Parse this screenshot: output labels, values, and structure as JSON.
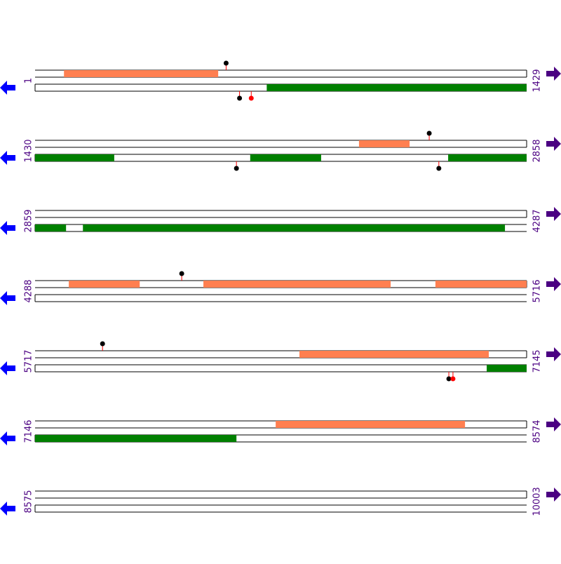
{
  "rows": [
    {
      "start": "1",
      "end": "1429",
      "from": 1,
      "to": 1429,
      "features": [
        {
          "strand": "top",
          "from": 85,
          "to": 533
        },
        {
          "strand": "bottom",
          "from": 674,
          "to": 1429
        }
      ],
      "markers": [
        {
          "strand": "top",
          "pos": 556,
          "color": "#000000"
        },
        {
          "strand": "bottom",
          "pos": 595,
          "color": "#000000"
        },
        {
          "strand": "bottom",
          "pos": 629,
          "color": "#ff0000"
        }
      ]
    },
    {
      "start": "1430",
      "end": "2858",
      "from": 1430,
      "to": 2858,
      "features": [
        {
          "strand": "top",
          "from": 2371,
          "to": 2518
        },
        {
          "strand": "bottom",
          "from": 1430,
          "to": 1660
        },
        {
          "strand": "bottom",
          "from": 2055,
          "to": 2261
        },
        {
          "strand": "bottom",
          "from": 2630,
          "to": 2858
        }
      ],
      "markers": [
        {
          "strand": "top",
          "pos": 2575,
          "color": "#000000"
        },
        {
          "strand": "bottom",
          "pos": 2015,
          "color": "#000000"
        },
        {
          "strand": "bottom",
          "pos": 2603,
          "color": "#000000"
        }
      ]
    },
    {
      "start": "2859",
      "end": "4287",
      "from": 2859,
      "to": 4287,
      "features": [
        {
          "strand": "bottom",
          "from": 2859,
          "to": 2949
        },
        {
          "strand": "bottom",
          "from": 2998,
          "to": 4224
        }
      ],
      "markers": []
    },
    {
      "start": "4288",
      "end": "5716",
      "from": 4288,
      "to": 5716,
      "features": [
        {
          "strand": "top",
          "from": 4386,
          "to": 4592
        },
        {
          "strand": "top",
          "from": 4777,
          "to": 5321
        },
        {
          "strand": "top",
          "from": 5451,
          "to": 5716
        }
      ],
      "markers": [
        {
          "strand": "top",
          "pos": 4714,
          "color": "#000000"
        }
      ]
    },
    {
      "start": "5717",
      "end": "7145",
      "from": 5717,
      "to": 7145,
      "features": [
        {
          "strand": "top",
          "from": 6485,
          "to": 7035
        },
        {
          "strand": "bottom",
          "from": 7029,
          "to": 7145
        }
      ],
      "markers": [
        {
          "strand": "top",
          "pos": 5913,
          "color": "#000000"
        },
        {
          "strand": "bottom",
          "pos": 6919,
          "color": "#000000"
        },
        {
          "strand": "bottom",
          "pos": 6931,
          "color": "#ff0000"
        }
      ]
    },
    {
      "start": "7146",
      "end": "8574",
      "from": 7146,
      "to": 8574,
      "features": [
        {
          "strand": "top",
          "from": 7845,
          "to": 8395
        },
        {
          "strand": "bottom",
          "from": 7146,
          "to": 7731
        }
      ],
      "markers": []
    },
    {
      "start": "8575",
      "end": "10003",
      "from": 8575,
      "to": 10003,
      "features": [],
      "markers": []
    }
  ]
}
